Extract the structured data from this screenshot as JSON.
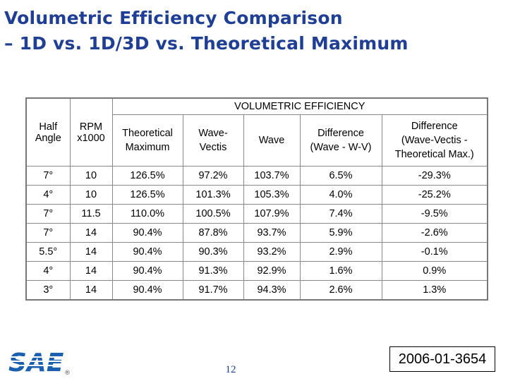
{
  "title": {
    "line1": "Volumetric Efficiency Comparison",
    "line2": "– 1D vs. 1D/3D vs. Theoretical Maximum"
  },
  "table": {
    "group_header": "VOLUMETRIC EFFICIENCY",
    "headers": {
      "half_angle": [
        "Half",
        "Angle"
      ],
      "rpm": [
        "RPM",
        "x1000"
      ],
      "theoretical": [
        "Theoretical",
        "Maximum"
      ],
      "wave_vectis": [
        "Wave-",
        "Vectis"
      ],
      "wave": [
        "Wave"
      ],
      "diff1": [
        "Difference",
        "(Wave - W-V)"
      ],
      "diff2": [
        "Difference",
        "(Wave-Vectis -",
        "Theoretical Max.)"
      ]
    },
    "rows": [
      [
        "7°",
        "10",
        "126.5%",
        "97.2%",
        "103.7%",
        "6.5%",
        "-29.3%"
      ],
      [
        "4°",
        "10",
        "126.5%",
        "101.3%",
        "105.3%",
        "4.0%",
        "-25.2%"
      ],
      [
        "7°",
        "11.5",
        "110.0%",
        "100.5%",
        "107.9%",
        "7.4%",
        "-9.5%"
      ],
      [
        "7°",
        "14",
        "90.4%",
        "87.8%",
        "93.7%",
        "5.9%",
        "-2.6%"
      ],
      [
        "5.5°",
        "14",
        "90.4%",
        "90.3%",
        "93.2%",
        "2.9%",
        "-0.1%"
      ],
      [
        "4°",
        "14",
        "90.4%",
        "91.3%",
        "92.9%",
        "1.6%",
        "0.9%"
      ],
      [
        "3°",
        "14",
        "90.4%",
        "91.7%",
        "94.3%",
        "2.6%",
        "1.3%"
      ]
    ]
  },
  "footer": {
    "logo_text": "SAE",
    "registered_mark": "®",
    "page_number": "12",
    "paper_id": "2006-01-3654"
  },
  "colors": {
    "title": "#1f3e96",
    "logo": "#1b5fb0"
  }
}
